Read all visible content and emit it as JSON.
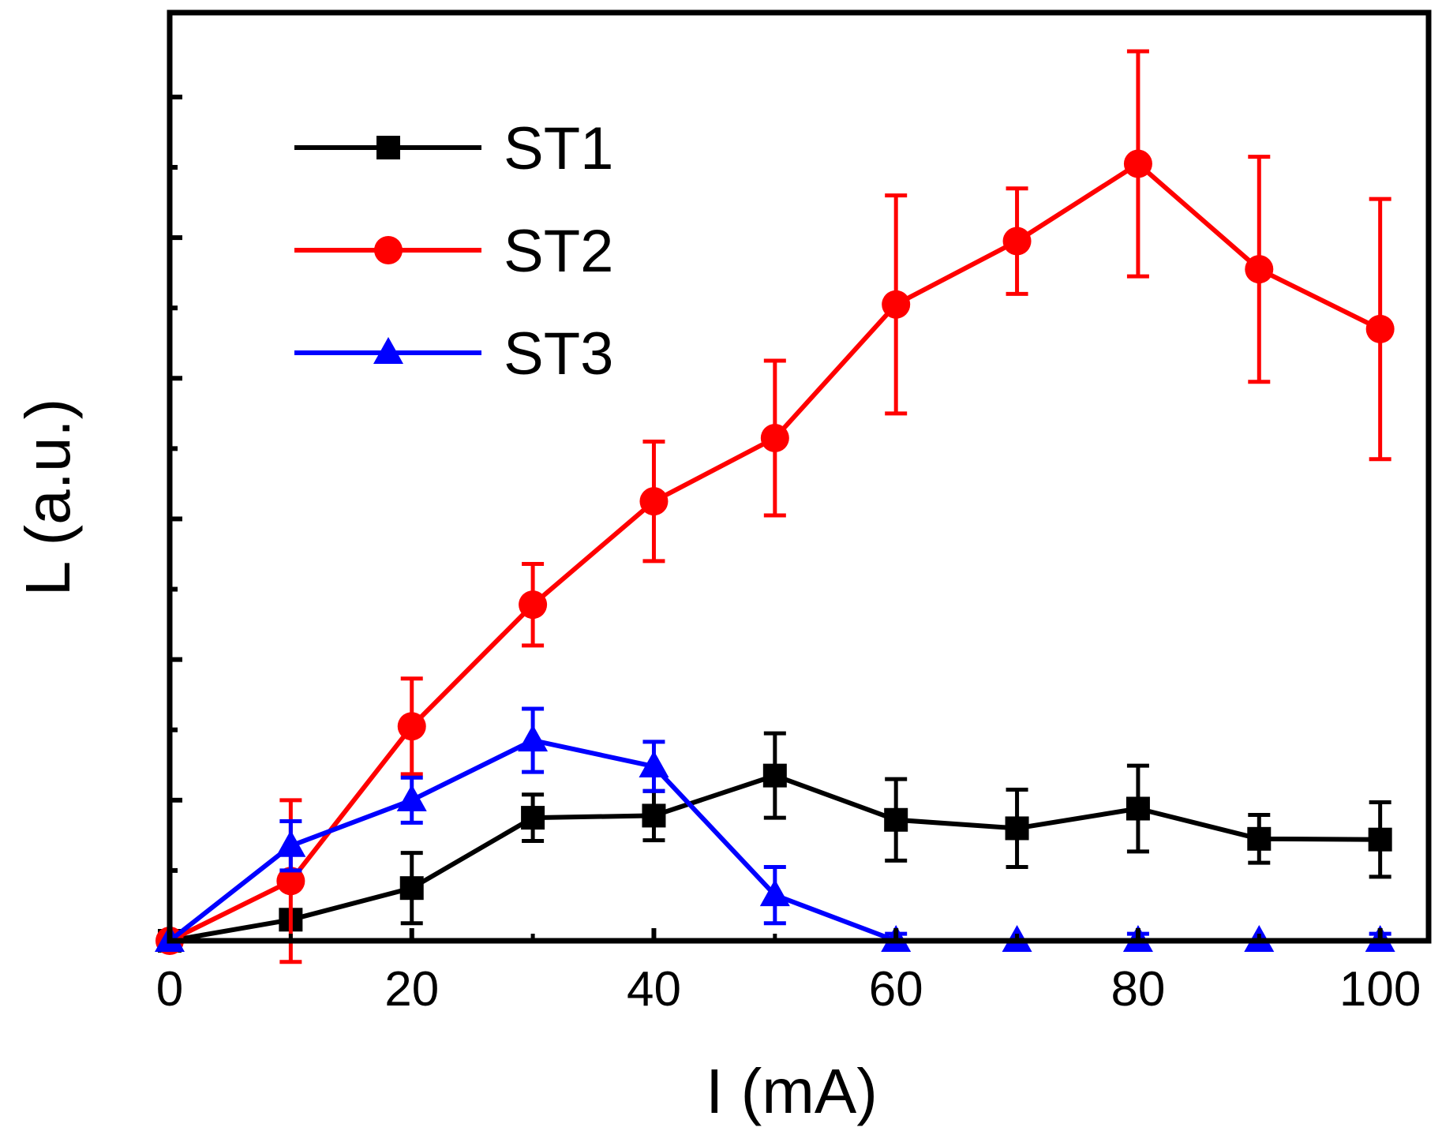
{
  "chart_data": {
    "type": "line",
    "title": "",
    "xlabel": "I (mA)",
    "ylabel": "L (a.u.)",
    "xlim": [
      0,
      104
    ],
    "ylim": [
      0,
      13.2
    ],
    "xticks": [
      0,
      20,
      40,
      60,
      80,
      100
    ],
    "xtick_labels": [
      "0",
      "20",
      "40",
      "60",
      "80",
      "100"
    ],
    "yticks": [
      1,
      2,
      3,
      4,
      5,
      6,
      7,
      8,
      9,
      10,
      11,
      12
    ],
    "ytick_labels_visible": false,
    "grid": false,
    "legend_position": "top-left",
    "x": [
      0,
      10,
      20,
      30,
      40,
      50,
      60,
      70,
      80,
      90,
      100
    ],
    "series": [
      {
        "name": "ST1",
        "color": "#000000",
        "marker": "square",
        "values": [
          0,
          0.3,
          0.75,
          1.75,
          1.78,
          2.35,
          1.72,
          1.6,
          1.88,
          1.45,
          1.44
        ],
        "errors": [
          0,
          0.12,
          0.5,
          0.33,
          0.35,
          0.6,
          0.58,
          0.55,
          0.61,
          0.34,
          0.53
        ]
      },
      {
        "name": "ST2",
        "color": "#ff0000",
        "marker": "circle",
        "values": [
          0,
          0.85,
          3.05,
          4.78,
          6.25,
          7.15,
          9.05,
          9.95,
          11.05,
          9.55,
          8.7
        ],
        "errors": [
          0,
          1.15,
          0.68,
          0.58,
          0.85,
          1.1,
          1.55,
          0.75,
          1.6,
          1.6,
          1.85
        ]
      },
      {
        "name": "ST3",
        "color": "#0000ff",
        "marker": "triangle",
        "values": [
          0,
          1.35,
          2.0,
          2.85,
          2.48,
          0.65,
          0,
          0,
          0,
          0,
          0
        ],
        "errors": [
          0,
          0.35,
          0.32,
          0.45,
          0.35,
          0.4,
          0.1,
          0,
          0.1,
          0,
          0.1
        ]
      }
    ]
  }
}
